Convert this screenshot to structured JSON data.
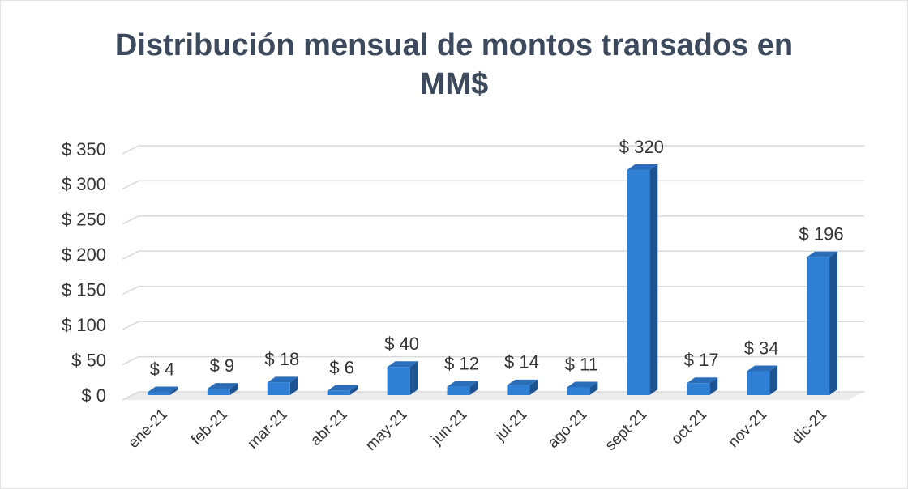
{
  "chart_data": {
    "type": "bar3d",
    "title": "Distribución mensual de montos transados en MM$",
    "categories": [
      "ene-21",
      "feb-21",
      "mar-21",
      "abr-21",
      "may-21",
      "jun-21",
      "jul-21",
      "ago-21",
      "sept-21",
      "oct-21",
      "nov-21",
      "dic-21"
    ],
    "values": [
      4,
      9,
      18,
      6,
      40,
      12,
      14,
      11,
      320,
      17,
      34,
      196
    ],
    "value_labels": [
      "$ 4",
      "$ 9",
      "$ 18",
      "$ 6",
      "$ 40",
      "$ 12",
      "$ 14",
      "$ 11",
      "$ 320",
      "$ 17",
      "$ 34",
      "$ 196"
    ],
    "color": "#2f80d4",
    "ylim": [
      0,
      350
    ],
    "yticks": [
      {
        "value": 0,
        "label": "$ 0"
      },
      {
        "value": 50,
        "label": "$ 50"
      },
      {
        "value": 100,
        "label": "$ 100"
      },
      {
        "value": 150,
        "label": "$ 150"
      },
      {
        "value": 200,
        "label": "$ 200"
      },
      {
        "value": 250,
        "label": "$ 250"
      },
      {
        "value": 300,
        "label": "$ 300"
      },
      {
        "value": 350,
        "label": "$ 350"
      }
    ],
    "grid": true
  }
}
